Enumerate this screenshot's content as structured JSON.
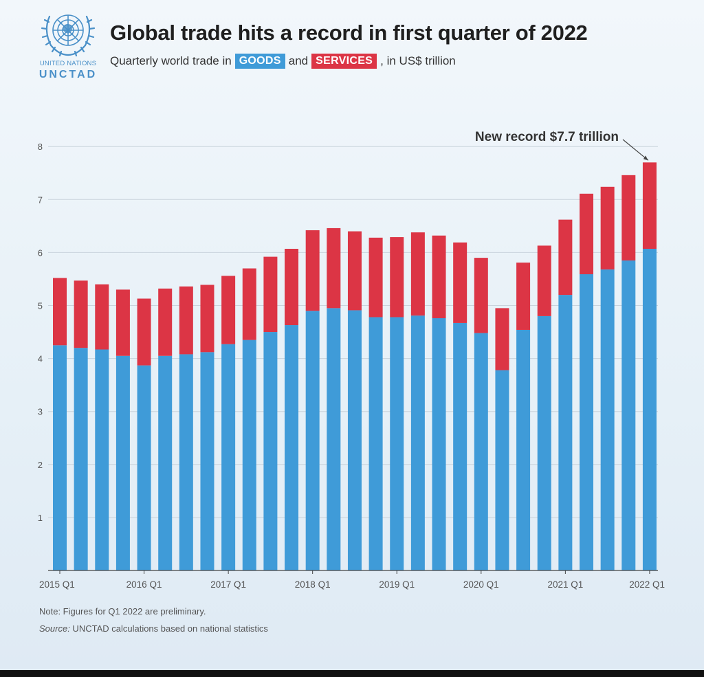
{
  "header": {
    "title": "Global trade hits a record in first quarter of 2022",
    "subtitle_prefix": "Quarterly world trade in",
    "subtitle_and": "and",
    "subtitle_suffix": ", in US$ trillion",
    "goods_label": "GOODS",
    "services_label": "SERVICES"
  },
  "logo": {
    "line1": "UNITED NATIONS",
    "line2": "UNCTAD"
  },
  "footer": {
    "note": "Note: Figures for Q1 2022 are preliminary.",
    "source_label": "Source:",
    "source_text": " UNCTAD calculations based on national statistics"
  },
  "colors": {
    "goods": "#3f9bd8",
    "services": "#dc3545",
    "grid": "#c9d3dc",
    "axis": "#444444"
  },
  "chart_data": {
    "type": "bar",
    "stacked": true,
    "title": "Global trade hits a record in first quarter of 2022",
    "subtitle": "Quarterly world trade in GOODS and SERVICES, in US$ trillion",
    "ylim": [
      0,
      8
    ],
    "yticks": [
      1,
      2,
      3,
      4,
      5,
      6,
      7,
      8
    ],
    "grid": true,
    "x_tick_labels": [
      "2015 Q1",
      "2016 Q1",
      "2017 Q1",
      "2018 Q1",
      "2019 Q1",
      "2020 Q1",
      "2021 Q1",
      "2022 Q1"
    ],
    "x_tick_indices": [
      0,
      4,
      8,
      12,
      16,
      20,
      24,
      28
    ],
    "categories": [
      "2015 Q1",
      "2015 Q2",
      "2015 Q3",
      "2015 Q4",
      "2016 Q1",
      "2016 Q2",
      "2016 Q3",
      "2016 Q4",
      "2017 Q1",
      "2017 Q2",
      "2017 Q3",
      "2017 Q4",
      "2018 Q1",
      "2018 Q2",
      "2018 Q3",
      "2018 Q4",
      "2019 Q1",
      "2019 Q2",
      "2019 Q3",
      "2019 Q4",
      "2020 Q1",
      "2020 Q2",
      "2020 Q3",
      "2020 Q4",
      "2021 Q1",
      "2021 Q2",
      "2021 Q3",
      "2021 Q4",
      "2022 Q1"
    ],
    "series": [
      {
        "name": "GOODS",
        "values": [
          4.25,
          4.2,
          4.17,
          4.05,
          3.87,
          4.05,
          4.08,
          4.12,
          4.27,
          4.35,
          4.5,
          4.63,
          4.9,
          4.95,
          4.91,
          4.78,
          4.78,
          4.81,
          4.76,
          4.67,
          4.48,
          3.78,
          4.54,
          4.8,
          5.2,
          5.59,
          5.68,
          5.85,
          6.07
        ]
      },
      {
        "name": "SERVICES",
        "values": [
          1.27,
          1.27,
          1.23,
          1.25,
          1.26,
          1.27,
          1.28,
          1.27,
          1.29,
          1.35,
          1.42,
          1.44,
          1.52,
          1.51,
          1.49,
          1.5,
          1.51,
          1.57,
          1.56,
          1.52,
          1.42,
          1.17,
          1.27,
          1.33,
          1.42,
          1.52,
          1.56,
          1.61,
          1.63
        ]
      }
    ],
    "annotation": {
      "text": "New record $7.7 trillion",
      "target_index": 28
    }
  }
}
